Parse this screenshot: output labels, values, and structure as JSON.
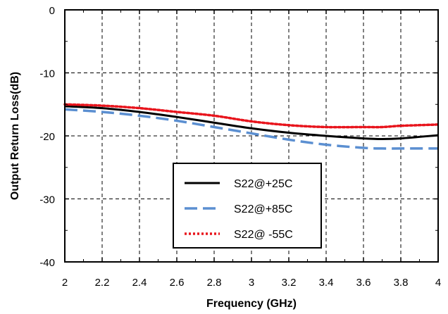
{
  "chart_data": {
    "type": "line",
    "xlabel": "Frequency (GHz)",
    "ylabel": "Output Return Loss(dB)",
    "xlim": [
      2,
      4
    ],
    "ylim": [
      -40,
      0
    ],
    "xticks": [
      2,
      2.2,
      2.4,
      2.6,
      2.8,
      3,
      3.2,
      3.4,
      3.6,
      3.8,
      4
    ],
    "xtick_labels": [
      "2",
      "2.2",
      "2.4",
      "2.6",
      "2.8",
      "3",
      "3.2",
      "3.4",
      "3.6",
      "3.8",
      "4"
    ],
    "yticks": [
      0,
      -10,
      -20,
      -30,
      -40
    ],
    "ytick_labels": [
      "0",
      "-10",
      "-20",
      "-30",
      "-40"
    ],
    "grid": true,
    "legend_position": "bottom-center",
    "x": [
      2.0,
      2.2,
      2.4,
      2.6,
      2.8,
      3.0,
      3.2,
      3.4,
      3.6,
      3.7,
      3.8,
      4.0
    ],
    "series": [
      {
        "name": "S22@+25C",
        "color": "#000000",
        "style": "solid",
        "values": [
          -15.3,
          -15.6,
          -16.2,
          -17.0,
          -17.9,
          -18.8,
          -19.5,
          -20.0,
          -20.4,
          -20.5,
          -20.4,
          -19.9
        ]
      },
      {
        "name": "S22@+85C",
        "color": "#5b8fd1",
        "style": "dashed",
        "values": [
          -15.8,
          -16.2,
          -16.8,
          -17.6,
          -18.6,
          -19.6,
          -20.6,
          -21.4,
          -21.9,
          -22.0,
          -22.0,
          -22.0
        ]
      },
      {
        "name": "S22@ -55C",
        "color": "#e8141c",
        "style": "dotted",
        "values": [
          -15.0,
          -15.2,
          -15.6,
          -16.2,
          -16.8,
          -17.7,
          -18.3,
          -18.6,
          -18.6,
          -18.6,
          -18.4,
          -18.2
        ]
      }
    ]
  }
}
